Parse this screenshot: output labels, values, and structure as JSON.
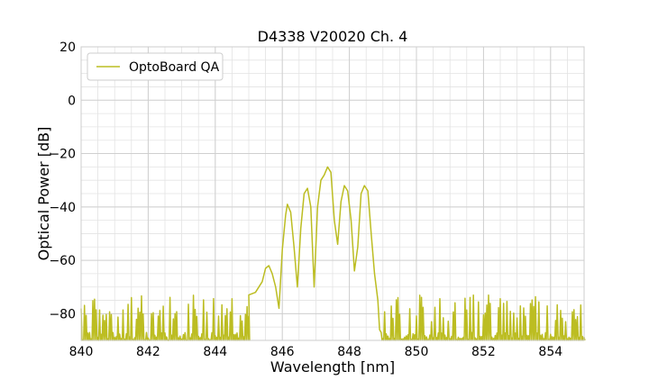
{
  "chart_data": {
    "type": "line",
    "title": "D4338 V20020 Ch. 4",
    "xlabel": "Wavelength [nm]",
    "ylabel": "Optical Power [dB]",
    "xlim": [
      840,
      855
    ],
    "ylim": [
      -90,
      20
    ],
    "xticks": [
      840,
      842,
      844,
      846,
      848,
      850,
      852,
      854
    ],
    "yticks": [
      20,
      0,
      -20,
      -40,
      -60,
      -80
    ],
    "xtick_labels": [
      "840",
      "842",
      "844",
      "846",
      "848",
      "850",
      "852",
      "854"
    ],
    "ytick_labels": [
      "20",
      "0",
      "−20",
      "−40",
      "−60",
      "−80"
    ],
    "grid": true,
    "minor_grid": true,
    "legend_position": "top-left",
    "series": [
      {
        "name": "OptoBoard QA",
        "color": "#bcbd22",
        "noise_floor_range": [
          -90,
          -73
        ],
        "x": [
          845.0,
          845.2,
          845.4,
          845.5,
          845.6,
          845.7,
          845.8,
          845.9,
          846.0,
          846.1,
          846.15,
          846.25,
          846.35,
          846.45,
          846.55,
          846.65,
          846.75,
          846.85,
          846.95,
          847.05,
          847.15,
          847.25,
          847.35,
          847.45,
          847.55,
          847.65,
          847.75,
          847.85,
          847.95,
          848.05,
          848.15,
          848.25,
          848.35,
          848.45,
          848.55,
          848.65,
          848.75,
          848.85,
          848.9
        ],
        "y": [
          -73,
          -72,
          -68,
          -63,
          -62,
          -65,
          -70,
          -78,
          -56,
          -43,
          -39,
          -42,
          -55,
          -70,
          -48,
          -35,
          -33,
          -40,
          -70,
          -40,
          -30,
          -28,
          -25,
          -27,
          -45,
          -54,
          -38,
          -32,
          -34,
          -45,
          -64,
          -55,
          -35,
          -32,
          -34,
          -50,
          -65,
          -75,
          -86
        ]
      }
    ]
  }
}
